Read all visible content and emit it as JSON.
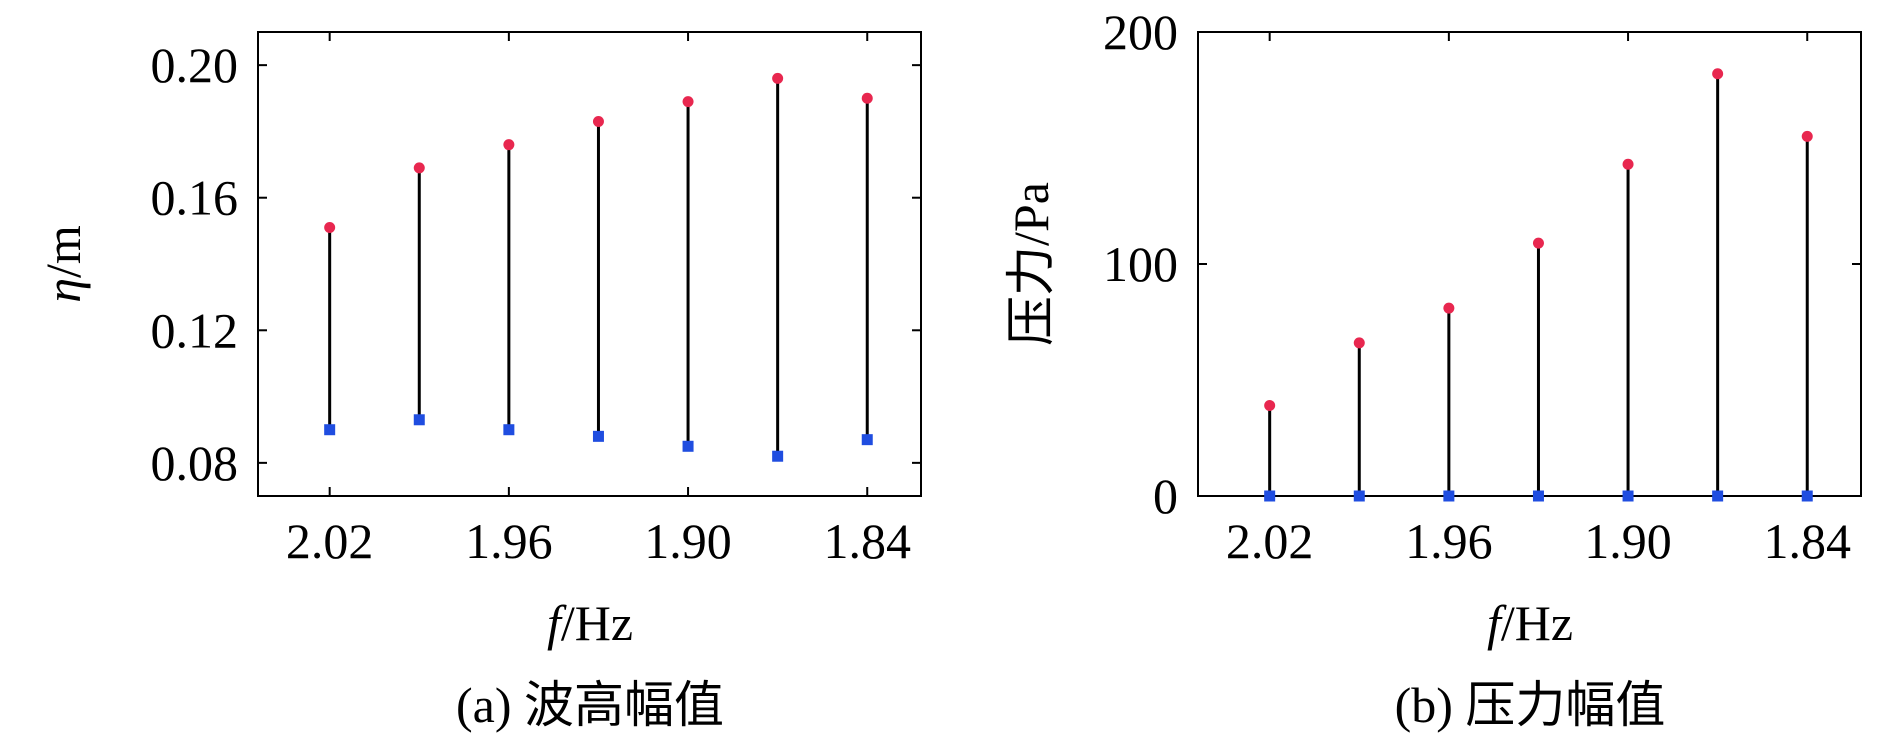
{
  "chart_data": [
    {
      "type": "scatter",
      "caption": "(a) 波高幅值",
      "xlabel_italic": "f",
      "xlabel_unit": "/Hz",
      "ylabel_italic": "η",
      "ylabel_unit": "/m",
      "x_ticks": [
        "2.02",
        "1.96",
        "1.90",
        "1.84"
      ],
      "y_ticks": [
        "0.08",
        "0.12",
        "0.16",
        "0.20"
      ],
      "x": [
        2.02,
        1.99,
        1.96,
        1.93,
        1.9,
        1.87,
        1.84
      ],
      "xlim": [
        2.044,
        1.822
      ],
      "ylim": [
        0.07,
        0.21
      ],
      "series": [
        {
          "values": [
            0.151,
            0.169,
            0.176,
            0.183,
            0.189,
            0.196,
            0.19
          ],
          "marker": "circle",
          "color": "#e8274f"
        },
        {
          "values": [
            0.09,
            0.093,
            0.09,
            0.088,
            0.085,
            0.082,
            0.087
          ],
          "marker": "square",
          "color": "#1f4de0"
        }
      ]
    },
    {
      "type": "scatter",
      "caption": "(b) 压力幅值",
      "xlabel_italic": "f",
      "xlabel_unit": "/Hz",
      "ylabel_text": "压力/Pa",
      "x_ticks": [
        "2.02",
        "1.96",
        "1.90",
        "1.84"
      ],
      "y_ticks": [
        "0",
        "100",
        "200"
      ],
      "x": [
        2.02,
        1.99,
        1.96,
        1.93,
        1.9,
        1.87,
        1.84
      ],
      "xlim": [
        2.044,
        1.822
      ],
      "ylim": [
        0,
        200
      ],
      "series": [
        {
          "values": [
            39,
            66,
            81,
            109,
            143,
            182,
            155
          ],
          "marker": "circle",
          "color": "#e8274f"
        },
        {
          "values": [
            0,
            0,
            0,
            0,
            0,
            0,
            0
          ],
          "marker": "square",
          "color": "#1f4de0"
        }
      ]
    }
  ]
}
